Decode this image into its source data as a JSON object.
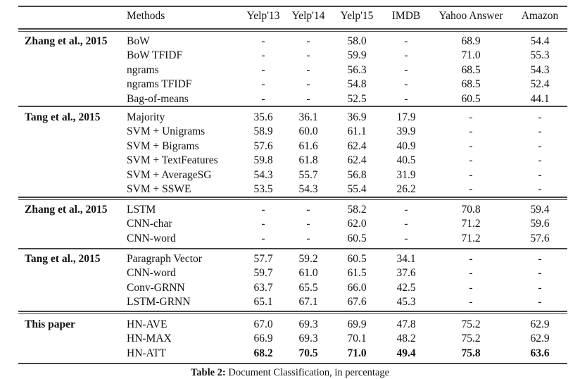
{
  "header": {
    "methods": "Methods",
    "columns": [
      "Yelp'13",
      "Yelp'14",
      "Yelp'15",
      "IMDB",
      "Yahoo Answer",
      "Amazon"
    ]
  },
  "groups": [
    {
      "label": "Zhang et al., 2015",
      "rows": [
        {
          "method": "BoW",
          "values": [
            "-",
            "-",
            "58.0",
            "-",
            "68.9",
            "54.4"
          ]
        },
        {
          "method": "BoW TFIDF",
          "values": [
            "-",
            "-",
            "59.9",
            "-",
            "71.0",
            "55.3"
          ]
        },
        {
          "method": "ngrams",
          "values": [
            "-",
            "-",
            "56.3",
            "-",
            "68.5",
            "54.3"
          ]
        },
        {
          "method": "ngrams TFIDF",
          "values": [
            "-",
            "-",
            "54.8",
            "-",
            "68.5",
            "52.4"
          ]
        },
        {
          "method": "Bag-of-means",
          "values": [
            "-",
            "-",
            "52.5",
            "-",
            "60.5",
            "44.1"
          ]
        }
      ]
    },
    {
      "label": "Tang et al., 2015",
      "rows": [
        {
          "method": "Majority",
          "values": [
            "35.6",
            "36.1",
            "36.9",
            "17.9",
            "-",
            "-"
          ]
        },
        {
          "method": "SVM + Unigrams",
          "values": [
            "58.9",
            "60.0",
            "61.1",
            "39.9",
            "-",
            "-"
          ]
        },
        {
          "method": "SVM + Bigrams",
          "values": [
            "57.6",
            "61.6",
            "62.4",
            "40.9",
            "-",
            "-"
          ]
        },
        {
          "method": "SVM + TextFeatures",
          "values": [
            "59.8",
            "61.8",
            "62.4",
            "40.5",
            "-",
            "-"
          ]
        },
        {
          "method": "SVM + AverageSG",
          "values": [
            "54.3",
            "55.7",
            "56.8",
            "31.9",
            "-",
            "-"
          ]
        },
        {
          "method": "SVM + SSWE",
          "values": [
            "53.5",
            "54.3",
            "55.4",
            "26.2",
            "-",
            "-"
          ]
        }
      ]
    },
    {
      "label": "Zhang et al., 2015",
      "rows": [
        {
          "method": "LSTM",
          "values": [
            "-",
            "-",
            "58.2",
            "-",
            "70.8",
            "59.4"
          ]
        },
        {
          "method": "CNN-char",
          "values": [
            "-",
            "-",
            "62.0",
            "-",
            "71.2",
            "59.6"
          ]
        },
        {
          "method": "CNN-word",
          "values": [
            "-",
            "-",
            "60.5",
            "-",
            "71.2",
            "57.6"
          ]
        }
      ]
    },
    {
      "label": "Tang et al., 2015",
      "rows": [
        {
          "method": "Paragraph Vector",
          "values": [
            "57.7",
            "59.2",
            "60.5",
            "34.1",
            "-",
            "-"
          ]
        },
        {
          "method": "CNN-word",
          "values": [
            "59.7",
            "61.0",
            "61.5",
            "37.6",
            "-",
            "-"
          ]
        },
        {
          "method": "Conv-GRNN",
          "values": [
            "63.7",
            "65.5",
            "66.0",
            "42.5",
            "-",
            "-"
          ]
        },
        {
          "method": "LSTM-GRNN",
          "values": [
            "65.1",
            "67.1",
            "67.6",
            "45.3",
            "-",
            "-"
          ]
        }
      ]
    },
    {
      "label": "This paper",
      "rows": [
        {
          "method": "HN-AVE",
          "values": [
            "67.0",
            "69.3",
            "69.9",
            "47.8",
            "75.2",
            "62.9"
          ]
        },
        {
          "method": "HN-MAX",
          "values": [
            "66.9",
            "69.3",
            "70.1",
            "48.2",
            "75.2",
            "62.9"
          ]
        },
        {
          "method": "HN-ATT",
          "values": [
            "68.2",
            "70.5",
            "71.0",
            "49.4",
            "75.8",
            "63.6"
          ],
          "bold": true
        }
      ]
    }
  ],
  "caption": {
    "label": "Table 2:",
    "text": " Document Classification, in percentage"
  }
}
